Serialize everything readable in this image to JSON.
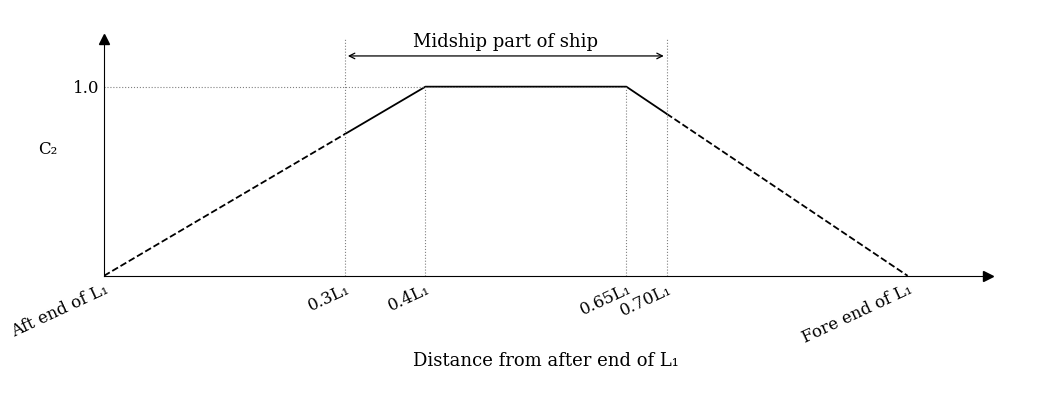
{
  "chart_data": {
    "type": "line",
    "xlabel": "Distance from after end of L₁",
    "ylabel": "C₂",
    "xlim": [
      0,
      1.1
    ],
    "ylim": [
      0,
      1.25
    ],
    "xticks": [
      {
        "value": 0,
        "label": "Aft end of L₁"
      },
      {
        "value": 0.3,
        "label": "0.3L₁"
      },
      {
        "value": 0.4,
        "label": "0.4L₁"
      },
      {
        "value": 0.65,
        "label": "0.65L₁"
      },
      {
        "value": 0.7,
        "label": "0.70L₁"
      },
      {
        "value": 1.0,
        "label": "Fore end of L₁"
      }
    ],
    "yticks": [
      1.0
    ],
    "series": [
      {
        "x": [
          0,
          0.3
        ],
        "values": [
          0,
          0.75
        ],
        "color": "#000000",
        "line_style": "dashed"
      },
      {
        "x": [
          0.3,
          0.4,
          0.65,
          0.7
        ],
        "values": [
          0.75,
          1.0,
          1.0,
          0.857
        ],
        "color": "#000000",
        "line_style": "solid"
      },
      {
        "x": [
          0.7,
          1.0
        ],
        "values": [
          0.857,
          0
        ],
        "color": "#000000",
        "line_style": "dashed"
      }
    ],
    "annotations": [
      {
        "text": "Midship part of ship",
        "x_from": 0.3,
        "x_to": 0.7
      }
    ]
  }
}
